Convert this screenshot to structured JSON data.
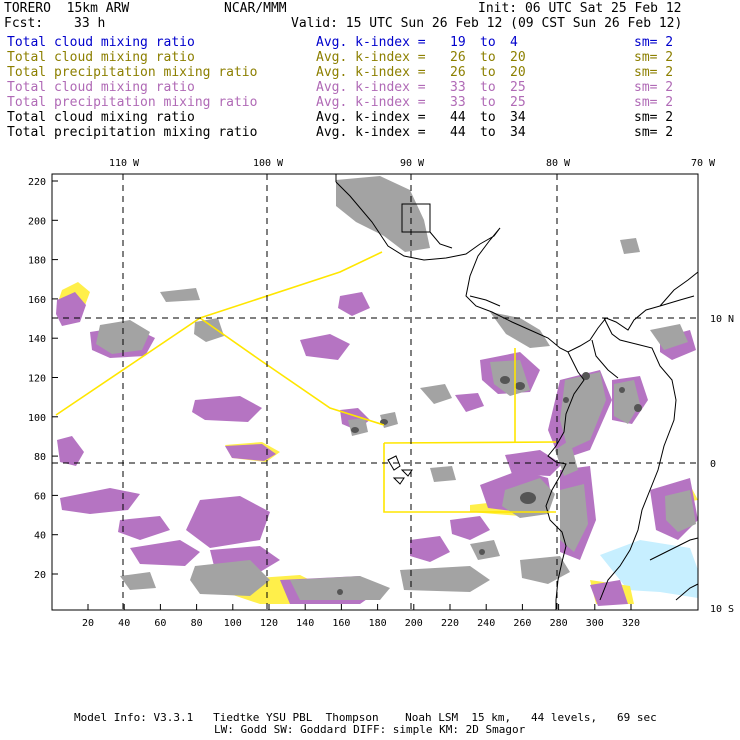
{
  "header": {
    "model": "TORERO  15km ARW",
    "org": "NCAR/MMM",
    "init": "Init: 06 UTC Sat 25 Feb 12",
    "fcst_label": "Fcst:",
    "fcst_hours": "33 h",
    "valid": "Valid: 15 UTC Sun 26 Feb 12 (09 CST Sun 26 Feb 12)"
  },
  "legend": [
    {
      "field": "Total cloud mixing ratio",
      "stat": "Avg. k-index =",
      "from": "19",
      "to": "to",
      "end": "4",
      "sm": "sm= 2",
      "color": "#0000cc"
    },
    {
      "field": "Total cloud mixing ratio",
      "stat": "Avg. k-index =",
      "from": "26",
      "to": "to",
      "end": "20",
      "sm": "sm= 2",
      "color": "#8c7f00"
    },
    {
      "field": "Total precipitation mixing ratio",
      "stat": "Avg. k-index =",
      "from": "26",
      "to": "to",
      "end": "20",
      "sm": "sm= 2",
      "color": "#8c7f00"
    },
    {
      "field": "Total cloud mixing ratio",
      "stat": "Avg. k-index =",
      "from": "33",
      "to": "to",
      "end": "25",
      "sm": "sm= 2",
      "color": "#b06ab6"
    },
    {
      "field": "Total precipitation mixing ratio",
      "stat": "Avg. k-index =",
      "from": "33",
      "to": "to",
      "end": "25",
      "sm": "sm= 2",
      "color": "#b06ab6"
    },
    {
      "field": "Total cloud mixing ratio",
      "stat": "Avg. k-index =",
      "from": "44",
      "to": "to",
      "end": "34",
      "sm": "sm= 2",
      "color": "#000000"
    },
    {
      "field": "Total precipitation mixing ratio",
      "stat": "Avg. k-index =",
      "from": "44",
      "to": "to",
      "end": "34",
      "sm": "sm= 2",
      "color": "#000000"
    }
  ],
  "axes": {
    "top_lon": [
      "110 W",
      "100 W",
      "90 W",
      "80 W",
      "70 W"
    ],
    "right_lat": [
      "10 N",
      "0",
      "10 S"
    ],
    "left_ticks": [
      "220",
      "200",
      "180",
      "160",
      "140",
      "120",
      "100",
      "80",
      "60",
      "40",
      "20"
    ],
    "bottom_ticks": [
      "20",
      "40",
      "60",
      "80",
      "100",
      "120",
      "140",
      "160",
      "180",
      "200",
      "220",
      "240",
      "260",
      "280",
      "300",
      "320"
    ]
  },
  "colors": {
    "purple": "#b574c2",
    "gray": "#a3a3a3",
    "dark": "#555555",
    "yellow": "#ffef4a",
    "domain_line": "#ffe600",
    "shelf": "#c7efff"
  },
  "footer": {
    "line1": "Model Info: V3.3.1   Tiedtke YSU PBL  Thompson    Noah LSM  15 km,   44 levels,   69 sec",
    "line2": "LW: Godd SW: Goddard DIFF: simple KM: 2D Smagor"
  }
}
